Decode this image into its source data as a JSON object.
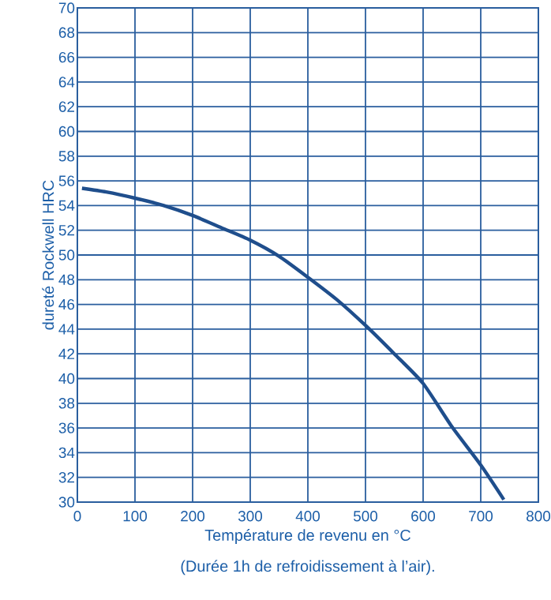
{
  "chart_data": {
    "type": "line",
    "xlabel": "Température de revenu en °C",
    "ylabel": "dureté Rockwell HRC",
    "annotations": [
      "(Durée 1h de refroidissement à l’air)."
    ],
    "x": [
      8,
      50,
      100,
      150,
      200,
      250,
      300,
      350,
      400,
      450,
      500,
      550,
      600,
      650,
      700,
      740
    ],
    "series": [
      {
        "color": "#1f4e8c",
        "values": [
          55.4,
          55.1,
          54.6,
          54.0,
          53.2,
          52.2,
          51.2,
          49.9,
          48.2,
          46.4,
          44.3,
          42.0,
          39.6,
          36.1,
          33.0,
          30.2
        ]
      }
    ],
    "xlim": [
      0,
      800
    ],
    "xticks": [
      0,
      100,
      200,
      300,
      400,
      500,
      600,
      700,
      800
    ],
    "ylim": [
      30,
      70
    ],
    "yticks": [
      30,
      32,
      34,
      36,
      38,
      40,
      42,
      44,
      46,
      48,
      50,
      52,
      54,
      56,
      58,
      60,
      62,
      64,
      66,
      68,
      70
    ],
    "grid": true,
    "marker": "none"
  }
}
